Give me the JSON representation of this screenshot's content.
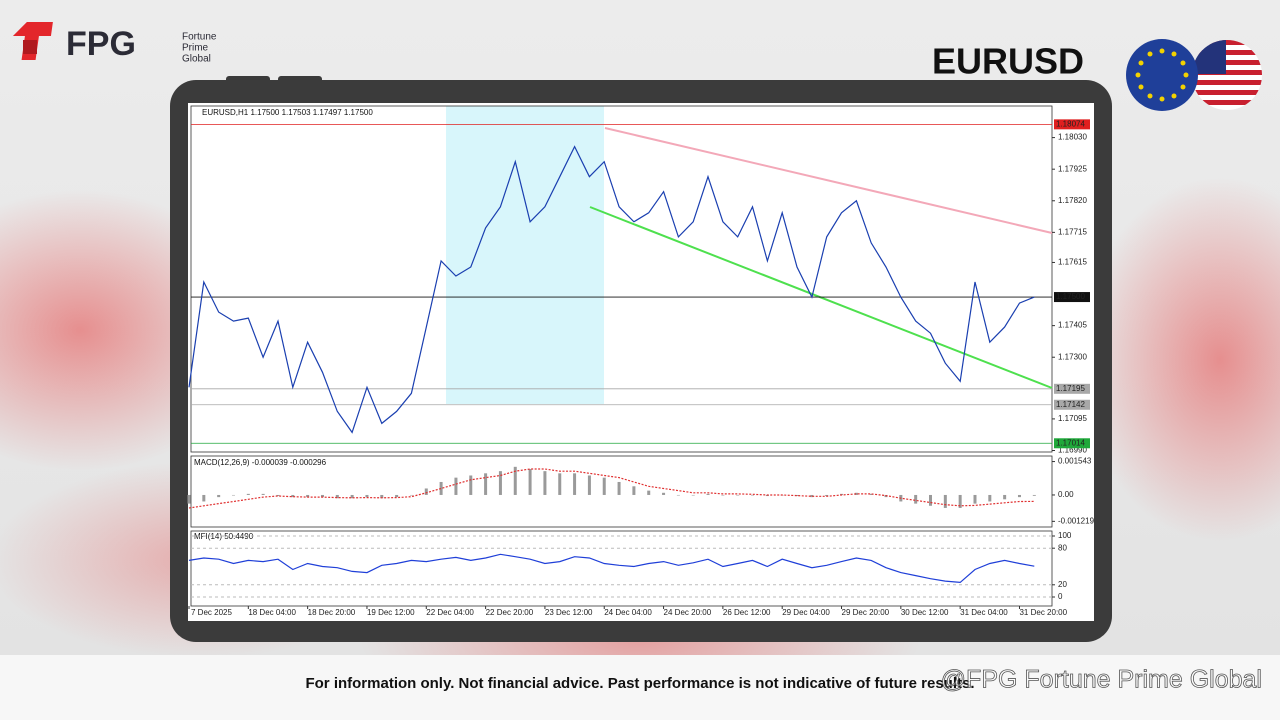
{
  "brand": {
    "name": "FPG",
    "lines": [
      "Fortune",
      "Prime",
      "Global"
    ]
  },
  "symbol": "EURUSD",
  "disclaimer": "For information only. Not financial advice. Past performance is not indicative of future results.",
  "watermark": "@FPG Fortune Prime Global",
  "chart_data": [
    {
      "type": "line",
      "title": "EURUSD,H1  1.17500 1.17503 1.17497 1.17500",
      "color": "#1a3fb0",
      "categories": [
        "7 Dec 2025",
        null,
        null,
        null,
        "18 Dec 04:00",
        null,
        null,
        null,
        "18 Dec 20:00",
        null,
        null,
        null,
        "19 Dec 12:00",
        null,
        null,
        null,
        "22 Dec 04:00",
        null,
        null,
        null,
        "22 Dec 20:00",
        null,
        null,
        null,
        "23 Dec 12:00",
        null,
        null,
        null,
        "24 Dec 04:00",
        null,
        null,
        null,
        "24 Dec 20:00",
        null,
        null,
        null,
        "26 Dec 12:00",
        null,
        null,
        null,
        "29 Dec 04:00",
        null,
        null,
        null,
        "29 Dec 20:00",
        null,
        null,
        null,
        "30 Dec 12:00",
        null,
        null,
        null,
        "31 Dec 04:00",
        null,
        null,
        null,
        "31 Dec 20:00",
        null
      ],
      "values": [
        1.172,
        1.1755,
        1.1745,
        1.1742,
        1.1743,
        1.173,
        1.1742,
        1.172,
        1.1735,
        1.1725,
        1.1712,
        1.1705,
        1.172,
        1.1708,
        1.1712,
        1.1718,
        1.174,
        1.1762,
        1.1757,
        1.176,
        1.1773,
        1.178,
        1.1795,
        1.1775,
        1.178,
        1.179,
        1.18,
        1.179,
        1.1795,
        1.178,
        1.1775,
        1.1778,
        1.1785,
        1.177,
        1.1775,
        1.179,
        1.1775,
        1.177,
        1.178,
        1.1762,
        1.1778,
        1.176,
        1.175,
        1.177,
        1.1778,
        1.1782,
        1.1768,
        1.176,
        1.175,
        1.1742,
        1.1738,
        1.1728,
        1.1722,
        1.1755,
        1.1735,
        1.174,
        1.1748,
        1.175
      ],
      "ylim": [
        1.16985,
        1.18135
      ],
      "yticks": [
        {
          "value": 1.1803,
          "label": "1.18030"
        },
        1.17925,
        {
          "value": 1.1782,
          "label": "1.17820"
        },
        1.17715,
        1.17615,
        1.17405,
        {
          "value": 1.173,
          "label": "1.17300"
        },
        1.17095,
        {
          "value": 1.1699,
          "label": "1.16990"
        }
      ],
      "levels": [
        {
          "value": 1.18074,
          "color": "#e02020"
        },
        {
          "value": 1.175,
          "label": "1.17500",
          "color": "#111111"
        },
        {
          "value": 1.17195,
          "color": "#a8a8a8"
        },
        {
          "value": 1.17142,
          "color": "#a8a8a8"
        },
        {
          "value": 1.17014,
          "color": "#1fa83a"
        }
      ]
    },
    {
      "type": "macd",
      "title": "MACD(12,26,9) -0.000039 -0.000296",
      "series": [
        {
          "color": "#9a9a9a",
          "values": [
            -0.0004,
            -0.0003,
            -0.0001,
            0,
            5e-05,
            5e-05,
            -5e-05,
            -0.0001,
            -0.0001,
            -0.0001,
            -0.00015,
            -0.00015,
            -0.0001,
            -0.00015,
            -0.0001,
            0,
            0.0003,
            0.0006,
            0.0008,
            0.0009,
            0.001,
            0.0011,
            0.0013,
            0.0012,
            0.0011,
            0.001,
            0.001,
            0.0009,
            0.0008,
            0.0006,
            0.0004,
            0.0002,
            0.0001,
            0,
            0,
            5e-05,
            0,
            0,
            0,
            -5e-05,
            0,
            -5e-05,
            -0.0001,
            -5e-05,
            5e-05,
            0.0001,
            5e-05,
            -0.0001,
            -0.0003,
            -0.0004,
            -0.0005,
            -0.0006,
            -0.0006,
            -0.0004,
            -0.0003,
            -0.0002,
            -0.0001,
            -3.9e-05
          ]
        },
        {
          "color": "#e03030",
          "values": [
            -0.0006,
            -0.0005,
            -0.0004,
            -0.0003,
            -0.0002,
            -0.0001,
            -5e-05,
            -8e-05,
            -0.0001,
            -0.0001,
            -0.00012,
            -0.00013,
            -0.00012,
            -0.00013,
            -0.00012,
            -8e-05,
            0.0001,
            0.0003,
            0.0005,
            0.0007,
            0.0008,
            0.0009,
            0.0011,
            0.0012,
            0.0012,
            0.0011,
            0.0011,
            0.001,
            0.0009,
            0.0008,
            0.0006,
            0.0004,
            0.0003,
            0.0002,
            0.0001,
            0.0001,
            5e-05,
            5e-05,
            3e-05,
            0,
            0,
            -3e-05,
            -6e-05,
            -6e-05,
            0,
            5e-05,
            5e-05,
            -3e-05,
            -0.00015,
            -0.00025,
            -0.00035,
            -0.00045,
            -0.0005,
            -0.00048,
            -0.00042,
            -0.00036,
            -0.0003,
            -0.000296
          ]
        }
      ],
      "ylim": [
        -0.00148,
        0.0018
      ],
      "yticks": [
        0.001543,
        {
          "value": 0,
          "label": "0.00"
        },
        -0.001219
      ]
    },
    {
      "type": "line",
      "title": "MFI(14) 50.4490",
      "color": "#1f3fd8",
      "values": [
        60,
        64,
        62,
        55,
        60,
        58,
        62,
        45,
        55,
        50,
        48,
        42,
        40,
        52,
        55,
        60,
        58,
        62,
        65,
        60,
        64,
        70,
        66,
        62,
        55,
        58,
        66,
        64,
        55,
        52,
        50,
        55,
        58,
        52,
        56,
        62,
        50,
        55,
        60,
        50,
        62,
        55,
        48,
        52,
        58,
        64,
        60,
        48,
        40,
        35,
        30,
        26,
        24,
        45,
        55,
        60,
        55,
        50.449
      ],
      "ylim": [
        0,
        100
      ],
      "yticks": [
        100,
        80,
        20,
        0
      ]
    }
  ]
}
